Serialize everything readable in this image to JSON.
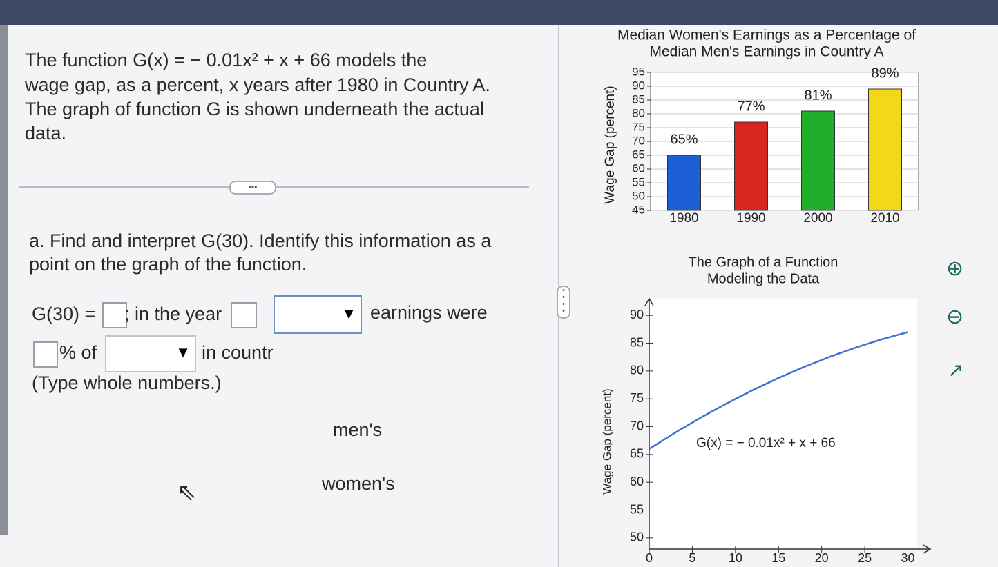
{
  "problem": {
    "text_lines": [
      "The function G(x) = − 0.01x² + x + 66 models the",
      "wage gap, as a percent, x years after 1980 in Country A.",
      "The graph of function G is shown underneath the actual",
      "data."
    ]
  },
  "question": {
    "lines": [
      "a. Find and interpret G(30). Identify this information as a",
      "point on the graph of the function."
    ],
    "answer": {
      "g30": "G(30) =",
      "in_year": "; in the year",
      "earnings_were": "earnings were",
      "percent_of": "% of",
      "in_country": "in countr",
      "hint": "(Type whole numbers.)"
    }
  },
  "dropdown_options": [
    "men's",
    "women's"
  ],
  "chart_data": [
    {
      "type": "bar",
      "title": [
        "Median Women's Earnings as a Percentage of",
        "Median Men's Earnings in Country A"
      ],
      "y_label": "Wage Gap (percent)",
      "categories": [
        "1980",
        "1990",
        "2000",
        "2010"
      ],
      "values": [
        65,
        77,
        81,
        89
      ],
      "value_labels": [
        "65%",
        "77%",
        "81%",
        "89%"
      ],
      "colors": [
        "#1f5fd6",
        "#d8261e",
        "#1fae2c",
        "#f2d816"
      ],
      "ylim": [
        45,
        95
      ],
      "yticks": [
        45,
        50,
        55,
        60,
        65,
        70,
        75,
        80,
        85,
        90,
        95
      ],
      "grid": true
    },
    {
      "type": "line",
      "title": [
        "The Graph of a Function",
        "Modeling the Data"
      ],
      "y_label": "Wage Gap (percent)",
      "annotation": "G(x) = − 0.01x² + x + 66",
      "series": [
        {
          "color": "#3d72cf",
          "x": [
            0,
            3,
            6,
            9,
            12,
            15,
            18,
            21,
            24,
            27,
            30
          ],
          "values": [
            66,
            68.91,
            71.64,
            74.19,
            76.56,
            78.75,
            80.76,
            82.59,
            84.24,
            85.71,
            87
          ]
        }
      ],
      "xlim": [
        0,
        31
      ],
      "xticks": [
        0,
        5,
        10,
        15,
        20,
        25,
        30
      ],
      "ylim": [
        48,
        93
      ],
      "yticks": [
        50,
        55,
        60,
        65,
        70,
        75,
        80,
        85,
        90
      ]
    }
  ]
}
